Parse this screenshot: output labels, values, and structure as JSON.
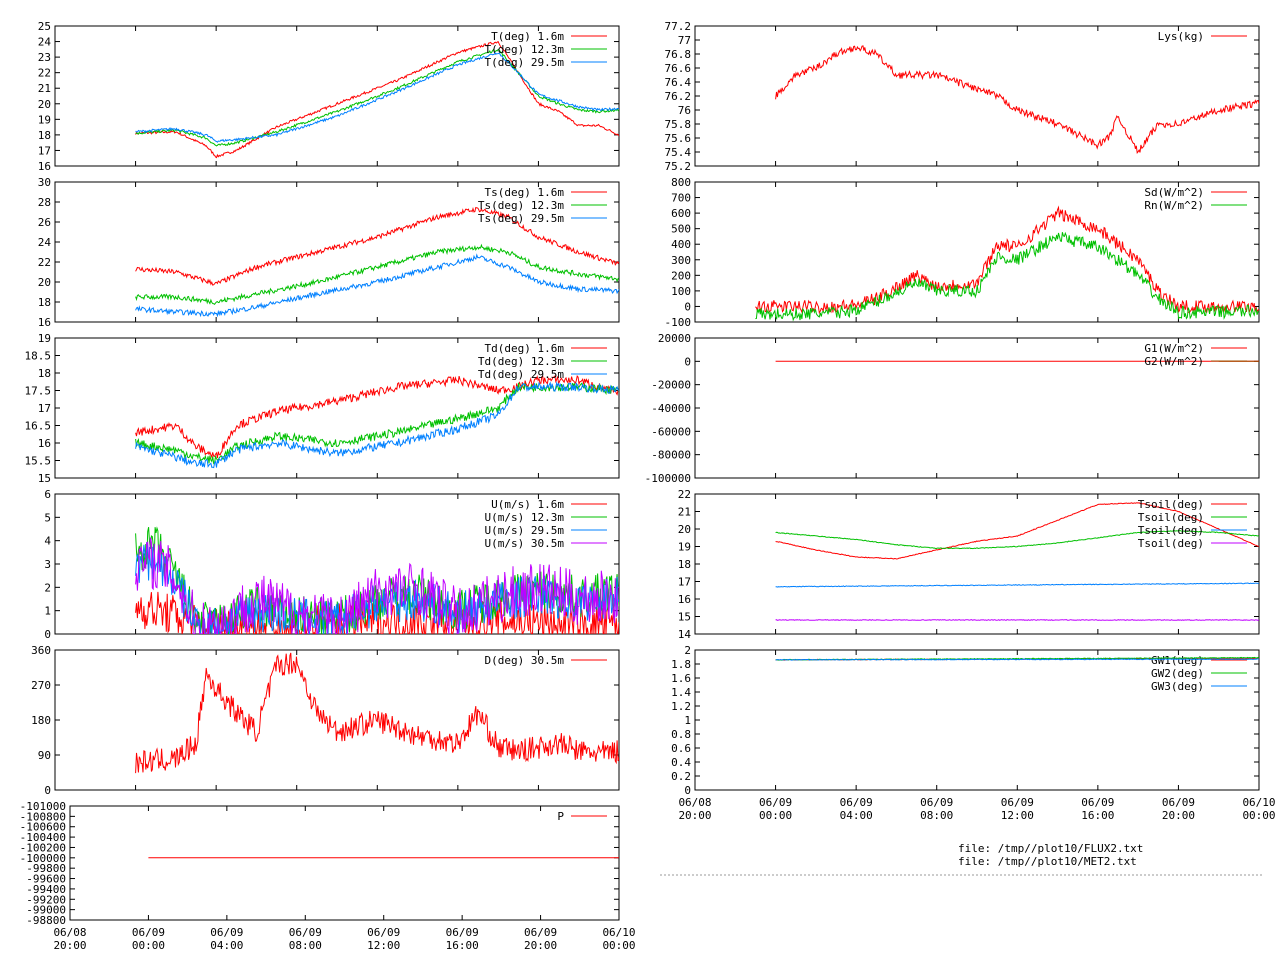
{
  "time_ticks": [
    [
      "06/08",
      "20:00"
    ],
    [
      "06/09",
      "00:00"
    ],
    [
      "06/09",
      "04:00"
    ],
    [
      "06/09",
      "08:00"
    ],
    [
      "06/09",
      "12:00"
    ],
    [
      "06/09",
      "16:00"
    ],
    [
      "06/09",
      "20:00"
    ],
    [
      "06/10",
      "00:00"
    ]
  ],
  "files": [
    "file: /tmp//plot10/FLUX2.txt",
    "file: /tmp//plot10/MET2.txt"
  ],
  "colors": {
    "red": "#ff0000",
    "green": "#00c000",
    "blue": "#0080ff",
    "purple": "#c000ff",
    "brown": "#a05000"
  },
  "chart_data": [
    {
      "id": "T",
      "type": "line",
      "xlim": [
        20,
        48
      ],
      "ylim": [
        16,
        25
      ],
      "yticks": [
        16,
        17,
        18,
        19,
        20,
        21,
        22,
        23,
        24,
        25
      ],
      "series": [
        {
          "name": "T(deg)  1.6m",
          "color": "red",
          "x": [
            24,
            26,
            27.5,
            28,
            29,
            31,
            34,
            37,
            40,
            42,
            43,
            44,
            45,
            46,
            47,
            48
          ],
          "y": [
            18.1,
            18.2,
            17.3,
            16.6,
            17.0,
            18.5,
            20.0,
            21.5,
            23.3,
            24.0,
            22.0,
            20.0,
            19.5,
            18.6,
            18.6,
            18.0
          ]
        },
        {
          "name": "T(deg) 12.3m",
          "color": "green",
          "x": [
            24,
            26,
            27.5,
            28,
            29,
            31,
            34,
            37,
            40,
            42,
            43,
            44,
            45,
            46,
            47,
            48
          ],
          "y": [
            18.1,
            18.3,
            17.8,
            17.3,
            17.5,
            18.2,
            19.5,
            21.0,
            22.7,
            23.5,
            22.0,
            20.5,
            20.0,
            19.6,
            19.5,
            19.6
          ]
        },
        {
          "name": "T(deg) 29.5m",
          "color": "blue",
          "x": [
            24,
            26,
            27.5,
            28,
            29,
            31,
            34,
            37,
            40,
            42,
            43,
            44,
            45,
            46,
            47,
            48
          ],
          "y": [
            18.2,
            18.4,
            18.0,
            17.6,
            17.7,
            18.0,
            19.2,
            20.8,
            22.5,
            23.3,
            22.0,
            20.6,
            20.2,
            19.8,
            19.6,
            19.7
          ]
        }
      ]
    },
    {
      "id": "Ts",
      "type": "line",
      "xlim": [
        20,
        48
      ],
      "ylim": [
        16,
        30
      ],
      "yticks": [
        16,
        18,
        20,
        22,
        24,
        26,
        28,
        30
      ],
      "series": [
        {
          "name": "Ts(deg)  1.6m",
          "color": "red",
          "x": [
            24,
            26,
            28,
            30,
            33,
            36,
            39,
            41,
            42.5,
            44,
            46,
            48
          ],
          "y": [
            21.3,
            21.0,
            19.8,
            21.5,
            23.0,
            24.5,
            26.5,
            27.3,
            26.5,
            24.5,
            23.0,
            21.8
          ]
        },
        {
          "name": "Ts(deg) 12.3m",
          "color": "green",
          "x": [
            24,
            26,
            28,
            30,
            33,
            36,
            39,
            41,
            42.5,
            44,
            46,
            48
          ],
          "y": [
            18.5,
            18.5,
            18.0,
            18.8,
            20.0,
            21.5,
            23.0,
            23.5,
            23.0,
            21.5,
            20.8,
            20.3
          ]
        },
        {
          "name": "Ts(deg) 29.5m",
          "color": "blue",
          "x": [
            24,
            26,
            28,
            30,
            33,
            36,
            39,
            41,
            42.5,
            44,
            46,
            48
          ],
          "y": [
            17.3,
            17.0,
            16.8,
            17.5,
            18.8,
            20.0,
            21.5,
            22.5,
            21.5,
            20.0,
            19.3,
            19.1
          ]
        }
      ]
    },
    {
      "id": "Td",
      "type": "line",
      "xlim": [
        20,
        48
      ],
      "ylim": [
        15,
        19
      ],
      "yticks": [
        15,
        15.5,
        16,
        16.5,
        17,
        17.5,
        18,
        18.5,
        19
      ],
      "series": [
        {
          "name": "Td(deg)  1.6m",
          "color": "red",
          "x": [
            24,
            26,
            27,
            28,
            29,
            31,
            34,
            37,
            40,
            42,
            43,
            44,
            46,
            48
          ],
          "y": [
            16.3,
            16.5,
            15.9,
            15.6,
            16.5,
            16.9,
            17.2,
            17.6,
            17.8,
            17.5,
            17.6,
            17.8,
            17.8,
            17.4
          ]
        },
        {
          "name": "Td(deg) 12.3m",
          "color": "green",
          "x": [
            24,
            26,
            27,
            28,
            29,
            31,
            34,
            37,
            40,
            42,
            43,
            44,
            46,
            48
          ],
          "y": [
            16.0,
            15.8,
            15.6,
            15.5,
            15.9,
            16.2,
            16.0,
            16.3,
            16.7,
            17.0,
            17.6,
            17.6,
            17.6,
            17.5
          ]
        },
        {
          "name": "Td(deg) 29.5m",
          "color": "blue",
          "x": [
            24,
            26,
            27,
            28,
            29,
            31,
            34,
            37,
            40,
            42,
            43,
            44,
            46,
            48
          ],
          "y": [
            15.9,
            15.6,
            15.4,
            15.4,
            15.8,
            16.0,
            15.7,
            16.0,
            16.4,
            16.8,
            17.6,
            17.6,
            17.6,
            17.5
          ]
        }
      ]
    },
    {
      "id": "U",
      "type": "line",
      "xlim": [
        20,
        48
      ],
      "ylim": [
        0,
        6
      ],
      "yticks": [
        0,
        1,
        2,
        3,
        4,
        5,
        6
      ],
      "series": [
        {
          "name": "U(m/s)  1.6m",
          "color": "red",
          "x": [
            24,
            25,
            26,
            27,
            28,
            30,
            32,
            34,
            36,
            38,
            40,
            42,
            44,
            46,
            48
          ],
          "y": [
            1.2,
            1.0,
            0.8,
            0.4,
            0.3,
            0.4,
            0.3,
            0.4,
            0.6,
            0.5,
            0.5,
            0.6,
            0.5,
            0.3,
            0.4
          ]
        },
        {
          "name": "U(m/s) 12.3m",
          "color": "green",
          "x": [
            24,
            25,
            26,
            27,
            28,
            30,
            32,
            34,
            36,
            38,
            40,
            42,
            44,
            46,
            48
          ],
          "y": [
            3.5,
            3.8,
            2.5,
            0.6,
            0.4,
            1.2,
            0.8,
            0.6,
            1.5,
            1.7,
            1.0,
            1.6,
            1.9,
            1.6,
            1.8
          ]
        },
        {
          "name": "U(m/s) 29.5m",
          "color": "blue",
          "x": [
            24,
            25,
            26,
            27,
            28,
            30,
            32,
            34,
            36,
            38,
            40,
            42,
            44,
            46,
            48
          ],
          "y": [
            3.0,
            3.2,
            2.2,
            0.5,
            0.3,
            1.0,
            0.7,
            0.5,
            1.3,
            1.5,
            0.9,
            1.4,
            1.7,
            1.4,
            1.6
          ]
        },
        {
          "name": "U(m/s) 30.5m",
          "color": "purple",
          "x": [
            24,
            25,
            26,
            27,
            28,
            30,
            32,
            34,
            36,
            38,
            40,
            42,
            44,
            46,
            48
          ],
          "y": [
            3.0,
            3.1,
            2.4,
            0.4,
            0.3,
            1.5,
            0.9,
            0.5,
            1.8,
            2.0,
            0.8,
            1.6,
            2.0,
            1.5,
            1.6
          ]
        }
      ]
    },
    {
      "id": "D",
      "type": "line",
      "xlim": [
        20,
        48
      ],
      "ylim": [
        0,
        360
      ],
      "yticks": [
        0,
        90,
        180,
        270,
        360
      ],
      "series": [
        {
          "name": "D(deg)  30.5m",
          "color": "red",
          "x": [
            24,
            25,
            26,
            27,
            27.5,
            28,
            29,
            30,
            31,
            32,
            33,
            34,
            36,
            38,
            40,
            41,
            42,
            43,
            44,
            45,
            46,
            47,
            48
          ],
          "y": [
            70,
            75,
            80,
            120,
            300,
            260,
            200,
            150,
            320,
            330,
            200,
            150,
            180,
            140,
            120,
            200,
            110,
            100,
            110,
            120,
            100,
            95,
            100
          ]
        }
      ]
    },
    {
      "id": "P",
      "type": "line",
      "xlim": [
        20,
        48
      ],
      "ylim": [
        -101000,
        -98800
      ],
      "yticks": [
        -101000,
        -100800,
        -100600,
        -100400,
        -100200,
        -100000,
        -99800,
        -99600,
        -99400,
        -99200,
        -99000,
        -98800
      ],
      "reverse": true,
      "series": [
        {
          "name": "P",
          "color": "red",
          "x": [
            24,
            48
          ],
          "y": [
            -100000,
            -100000
          ]
        }
      ]
    },
    {
      "id": "Lys",
      "type": "line",
      "xlim": [
        20,
        48
      ],
      "ylim": [
        75.2,
        77.2
      ],
      "yticks": [
        75.2,
        75.4,
        75.6,
        75.8,
        76,
        76.2,
        76.4,
        76.6,
        76.8,
        77,
        77.2
      ],
      "series": [
        {
          "name": "Lys(kg)",
          "color": "red",
          "x": [
            24,
            25,
            26,
            27,
            28,
            29,
            30,
            32,
            33,
            35,
            36,
            38,
            40,
            40.5,
            41,
            42,
            43,
            44,
            46,
            48
          ],
          "y": [
            76.2,
            76.5,
            76.6,
            76.8,
            76.9,
            76.8,
            76.5,
            76.5,
            76.4,
            76.2,
            76.0,
            75.8,
            75.5,
            75.6,
            75.9,
            75.4,
            75.8,
            75.8,
            76.0,
            76.1
          ]
        }
      ]
    },
    {
      "id": "Sd",
      "type": "line",
      "xlim": [
        20,
        48
      ],
      "ylim": [
        -100,
        800
      ],
      "yticks": [
        -100,
        0,
        100,
        200,
        300,
        400,
        500,
        600,
        700,
        800
      ],
      "series": [
        {
          "name": "Sd(W/m^2)",
          "color": "red",
          "x": [
            23,
            25,
            27,
            28,
            29,
            31,
            32,
            34,
            35,
            36,
            38,
            40,
            41,
            42,
            43,
            44,
            48
          ],
          "y": [
            0,
            0,
            0,
            10,
            50,
            200,
            130,
            150,
            400,
            380,
            600,
            500,
            400,
            300,
            100,
            0,
            0
          ]
        },
        {
          "name": "Rn(W/m^2)",
          "color": "green",
          "x": [
            23,
            25,
            27,
            28,
            29,
            31,
            32,
            34,
            35,
            36,
            38,
            40,
            41,
            42,
            43,
            44,
            48
          ],
          "y": [
            -50,
            -50,
            -40,
            -20,
            30,
            150,
            100,
            100,
            320,
            300,
            450,
            380,
            300,
            200,
            50,
            -40,
            -30
          ]
        }
      ]
    },
    {
      "id": "G",
      "type": "line",
      "xlim": [
        20,
        48
      ],
      "ylim": [
        -100000,
        20000
      ],
      "yticks": [
        -100000,
        -80000,
        -60000,
        -40000,
        -20000,
        0,
        20000
      ],
      "series": [
        {
          "name": "G1(W/m^2)",
          "color": "red",
          "x": [
            24,
            48
          ],
          "y": [
            0,
            0
          ]
        },
        {
          "name": "G2(W/m^2)",
          "color": "brown",
          "x": [
            46,
            48
          ],
          "y": [
            0,
            0
          ]
        }
      ]
    },
    {
      "id": "Tsoil",
      "type": "line",
      "xlim": [
        20,
        48
      ],
      "ylim": [
        14,
        22
      ],
      "yticks": [
        14,
        15,
        16,
        17,
        18,
        19,
        20,
        21,
        22
      ],
      "series": [
        {
          "name": "Tsoil(deg)",
          "color": "red",
          "x": [
            24,
            26,
            28,
            30,
            32,
            34,
            36,
            38,
            40,
            42,
            44,
            46,
            48
          ],
          "y": [
            19.3,
            18.8,
            18.4,
            18.3,
            18.8,
            19.3,
            19.6,
            20.5,
            21.4,
            21.5,
            21.0,
            20.0,
            19.0
          ]
        },
        {
          "name": "Tsoil(deg)",
          "color": "green",
          "x": [
            24,
            26,
            28,
            30,
            32,
            34,
            36,
            38,
            40,
            42,
            44,
            46,
            48
          ],
          "y": [
            19.8,
            19.6,
            19.4,
            19.1,
            18.9,
            18.9,
            19.0,
            19.2,
            19.5,
            19.8,
            19.9,
            19.8,
            19.6
          ]
        },
        {
          "name": "Tsoil(deg)",
          "color": "blue",
          "x": [
            24,
            48
          ],
          "y": [
            16.7,
            16.9
          ]
        },
        {
          "name": "Tsoil(deg)",
          "color": "purple",
          "x": [
            24,
            48
          ],
          "y": [
            14.8,
            14.8
          ]
        }
      ]
    },
    {
      "id": "GW",
      "type": "line",
      "xlim": [
        20,
        48
      ],
      "ylim": [
        0,
        2
      ],
      "yticks": [
        0,
        0.2,
        0.4,
        0.6,
        0.8,
        1,
        1.2,
        1.4,
        1.6,
        1.8,
        2
      ],
      "series": [
        {
          "name": "GW1(deg)",
          "color": "red",
          "x": [
            24,
            48
          ],
          "y": [
            1.86,
            1.88
          ]
        },
        {
          "name": "GW2(deg)",
          "color": "green",
          "x": [
            24,
            48
          ],
          "y": [
            1.86,
            1.89
          ]
        },
        {
          "name": "GW3(deg)",
          "color": "blue",
          "x": [
            24,
            48
          ],
          "y": [
            1.86,
            1.87
          ]
        }
      ]
    }
  ]
}
